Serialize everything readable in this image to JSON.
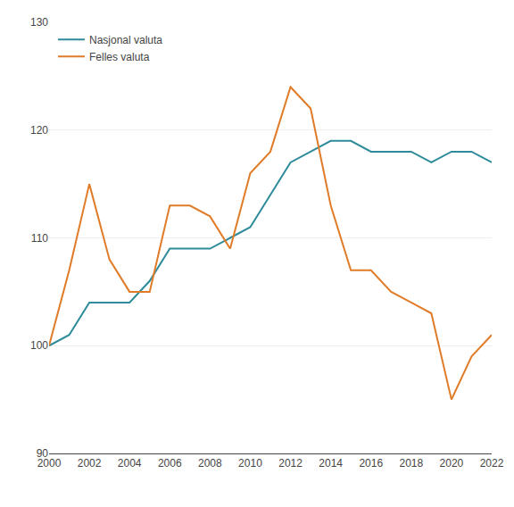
{
  "chart_data": {
    "type": "line",
    "x": [
      2000,
      2001,
      2002,
      2003,
      2004,
      2005,
      2006,
      2007,
      2008,
      2009,
      2010,
      2011,
      2012,
      2013,
      2014,
      2015,
      2016,
      2017,
      2018,
      2019,
      2020,
      2021,
      2022
    ],
    "series": [
      {
        "name": "Nasjonal valuta",
        "color": "#2e8b9a",
        "values": [
          100,
          101,
          104,
          104,
          104,
          106,
          109,
          109,
          109,
          110,
          111,
          114,
          117,
          118,
          119,
          119,
          118,
          118,
          118,
          117,
          118,
          118,
          117
        ]
      },
      {
        "name": "Felles valuta",
        "color": "#e07b28",
        "values": [
          100,
          107,
          115,
          108,
          105,
          105,
          113,
          113,
          112,
          109,
          116,
          118,
          124,
          122,
          113,
          107,
          107,
          105,
          104,
          103,
          95,
          99,
          101
        ]
      }
    ],
    "xlim": [
      2000,
      2022
    ],
    "ylim": [
      90,
      130
    ],
    "xticks": [
      2000,
      2002,
      2004,
      2006,
      2008,
      2010,
      2012,
      2014,
      2016,
      2018,
      2020,
      2022
    ],
    "yticks": [
      90,
      100,
      110,
      120,
      130
    ],
    "grid": "y",
    "legend": "upper left"
  }
}
